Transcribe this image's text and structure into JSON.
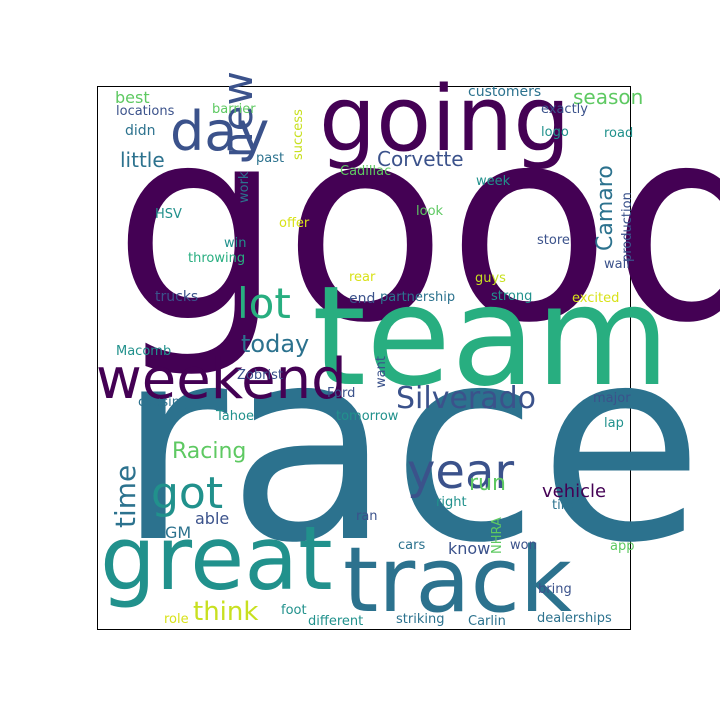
{
  "colors": {
    "purple": "#440154",
    "indigo": "#3b528b",
    "teal": "#2c728e",
    "cyan": "#21918c",
    "green": "#28ae80",
    "lime": "#5ec962",
    "yellow": "#c8e020",
    "paleYellow": "#d8e219"
  },
  "words": [
    {
      "key": "good",
      "text": "good",
      "color": "#440154"
    },
    {
      "key": "race",
      "text": "race",
      "color": "#2c728e"
    },
    {
      "key": "team",
      "text": "team",
      "color": "#28ae80"
    },
    {
      "key": "going",
      "text": "going",
      "color": "#440154"
    },
    {
      "key": "track",
      "text": "track",
      "color": "#2c728e"
    },
    {
      "key": "great",
      "text": "great",
      "color": "#21918c"
    },
    {
      "key": "weekend",
      "text": "weekend",
      "color": "#440154"
    },
    {
      "key": "day",
      "text": "day",
      "color": "#3b528b"
    },
    {
      "key": "new",
      "text": "new",
      "color": "#3b528b"
    },
    {
      "key": "year",
      "text": "year",
      "color": "#3b528b"
    },
    {
      "key": "lot",
      "text": "lot",
      "color": "#28ae80"
    },
    {
      "key": "got",
      "text": "got",
      "color": "#21918c"
    },
    {
      "key": "silverado",
      "text": "Silverado",
      "color": "#3b528b"
    },
    {
      "key": "time",
      "text": "time",
      "color": "#2c728e"
    },
    {
      "key": "think",
      "text": "think",
      "color": "#c8e020"
    },
    {
      "key": "today",
      "text": "today",
      "color": "#2c728e"
    },
    {
      "key": "season",
      "text": "season",
      "color": "#5ec962"
    },
    {
      "key": "corvette",
      "text": "Corvette",
      "color": "#3b528b"
    },
    {
      "key": "little",
      "text": "little",
      "color": "#2c728e"
    },
    {
      "key": "camaro",
      "text": "Camaro",
      "color": "#2c728e"
    },
    {
      "key": "racing",
      "text": "Racing",
      "color": "#5ec962"
    },
    {
      "key": "run",
      "text": "run",
      "color": "#5ec962"
    },
    {
      "key": "vehicle",
      "text": "vehicle",
      "color": "#440154"
    },
    {
      "key": "best",
      "text": "best",
      "color": "#5ec962"
    },
    {
      "key": "didn",
      "text": "didn",
      "color": "#2c728e"
    },
    {
      "key": "end",
      "text": "end",
      "color": "#3b528b"
    },
    {
      "key": "able",
      "text": "able",
      "color": "#3b528b"
    },
    {
      "key": "gm",
      "text": "GM",
      "color": "#2c728e"
    },
    {
      "key": "know",
      "text": "know",
      "color": "#3b528b"
    },
    {
      "key": "trucks",
      "text": "trucks",
      "color": "#3b528b"
    },
    {
      "key": "customers",
      "text": "customers",
      "color": "#2c728e"
    },
    {
      "key": "locations",
      "text": "locations",
      "color": "#3b528b"
    },
    {
      "key": "barrier",
      "text": "barrier",
      "color": "#5ec962"
    },
    {
      "key": "success",
      "text": "success",
      "color": "#c8e020"
    },
    {
      "key": "exactly",
      "text": "exactly",
      "color": "#3b528b"
    },
    {
      "key": "logo",
      "text": "logo",
      "color": "#21918c"
    },
    {
      "key": "road",
      "text": "road",
      "color": "#21918c"
    },
    {
      "key": "past",
      "text": "past",
      "color": "#2c728e"
    },
    {
      "key": "cadillac",
      "text": "Cadillac",
      "color": "#5ec962"
    },
    {
      "key": "work",
      "text": "work",
      "color": "#2c728e"
    },
    {
      "key": "week",
      "text": "week",
      "color": "#21918c"
    },
    {
      "key": "production",
      "text": "production",
      "color": "#3b528b"
    },
    {
      "key": "hsv",
      "text": "HSV",
      "color": "#21918c"
    },
    {
      "key": "offer",
      "text": "offer",
      "color": "#d8e219"
    },
    {
      "key": "look",
      "text": "look",
      "color": "#5ec962"
    },
    {
      "key": "win",
      "text": "win",
      "color": "#21918c"
    },
    {
      "key": "store",
      "text": "store",
      "color": "#3b528b"
    },
    {
      "key": "throwing",
      "text": "throwing",
      "color": "#28ae80"
    },
    {
      "key": "wall",
      "text": "wall",
      "color": "#3b528b"
    },
    {
      "key": "rear",
      "text": "rear",
      "color": "#d8e219"
    },
    {
      "key": "guys",
      "text": "guys",
      "color": "#c8e020"
    },
    {
      "key": "partnership",
      "text": "partnership",
      "color": "#2c728e"
    },
    {
      "key": "strong",
      "text": "strong",
      "color": "#21918c"
    },
    {
      "key": "excited",
      "text": "excited",
      "color": "#d8e219"
    },
    {
      "key": "macomb",
      "text": "Macomb",
      "color": "#21918c"
    },
    {
      "key": "want",
      "text": "want",
      "color": "#3b528b"
    },
    {
      "key": "ford",
      "text": "Ford",
      "color": "#3b528b"
    },
    {
      "key": "zobrist",
      "text": "Zobrist",
      "color": "#3b528b"
    },
    {
      "key": "causing",
      "text": "causing",
      "color": "#2c728e"
    },
    {
      "key": "tahoe",
      "text": "Tahoe",
      "color": "#21918c"
    },
    {
      "key": "tomorrow",
      "text": "tomorrow",
      "color": "#21918c"
    },
    {
      "key": "major",
      "text": "major",
      "color": "#3b528b"
    },
    {
      "key": "lap",
      "text": "lap",
      "color": "#21918c"
    },
    {
      "key": "right",
      "text": "right",
      "color": "#21918c"
    },
    {
      "key": "tire",
      "text": "tire",
      "color": "#2c728e"
    },
    {
      "key": "ran",
      "text": "ran",
      "color": "#3b528b"
    },
    {
      "key": "nhra",
      "text": "NHRA",
      "color": "#5ec962"
    },
    {
      "key": "won",
      "text": "won",
      "color": "#3b528b"
    },
    {
      "key": "cars",
      "text": "cars",
      "color": "#2c728e"
    },
    {
      "key": "app",
      "text": "app",
      "color": "#5ec962"
    },
    {
      "key": "bring",
      "text": "bring",
      "color": "#3b528b"
    },
    {
      "key": "role",
      "text": "role",
      "color": "#d8e219"
    },
    {
      "key": "foot",
      "text": "foot",
      "color": "#21918c"
    },
    {
      "key": "different",
      "text": "different",
      "color": "#21918c"
    },
    {
      "key": "striking",
      "text": "striking",
      "color": "#2c728e"
    },
    {
      "key": "carlin",
      "text": "Carlin",
      "color": "#2c728e"
    },
    {
      "key": "dealerships",
      "text": "dealerships",
      "color": "#2c728e"
    }
  ]
}
